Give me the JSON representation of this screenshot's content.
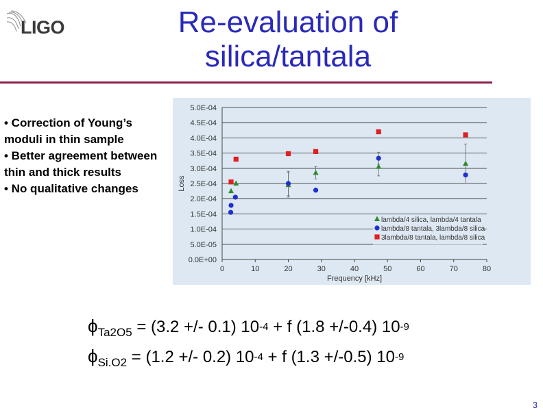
{
  "header": {
    "logo_text": "LIGO",
    "title_line1": "Re-evaluation of",
    "title_line2": "silica/tantala"
  },
  "bullets": [
    "• Correction of Young’s moduli in thin sample",
    "• Better agreement between thin and thick results",
    "• No qualitative changes"
  ],
  "equations": [
    {
      "symbol": "ϕ",
      "subscript": "Ta2O5",
      "text_a": " = (3.2 +/- 0.1) 10",
      "exp_a": "-4",
      "text_b": " + f (1.8 +/-0.4) 10",
      "exp_b": "-9"
    },
    {
      "symbol": "ϕ",
      "subscript": "Si.O2",
      "text_a": " = (1.2 +/- 0.2) 10",
      "exp_a": "-4",
      "text_b": " + f (1.3 +/-0.5) 10",
      "exp_b": "-9"
    }
  ],
  "page_number": "3",
  "colors": {
    "title": "#2a2ab8",
    "rule": "#8b1e4a",
    "chart_bg": "#dde8f2",
    "series_green": "#2e8b2e",
    "series_blue": "#1f2fd0",
    "series_red": "#e01f1f"
  },
  "chart_data": {
    "type": "scatter",
    "xlabel": "Frequency [kHz]",
    "ylabel": "Loss",
    "xlim": [
      0,
      80
    ],
    "ylim": [
      0,
      0.0005
    ],
    "x_ticks": [
      0,
      10,
      20,
      30,
      40,
      50,
      60,
      70,
      80
    ],
    "y_ticks": [
      0,
      5e-05,
      0.0001,
      0.00015,
      0.0002,
      0.00025,
      0.0003,
      0.00035,
      0.0004,
      0.00045,
      0.0005
    ],
    "y_tick_labels": [
      "0.0E+00",
      "5.0E-05",
      "1.0E-04",
      "1.5E-04",
      "2.0E-04",
      "2.5E-04",
      "3.0E-04",
      "3.5E-04",
      "4.0E-04",
      "4.5E-04",
      "5.0E-04"
    ],
    "grid": "horizontal",
    "legend_position": "bottom-right",
    "series": [
      {
        "name": "lambda/4 silica, lambda/4 tantala",
        "color": "#2e8b2e",
        "marker": "triangle",
        "points": [
          {
            "x": 2.7,
            "y": 0.000225
          },
          {
            "x": 4.2,
            "y": 0.00025
          },
          {
            "x": 20.0,
            "y": 0.000245,
            "err": 4e-05
          },
          {
            "x": 28.3,
            "y": 0.000285,
            "err": 2e-05
          },
          {
            "x": 47.3,
            "y": 0.000305,
            "err": 3e-05
          },
          {
            "x": 73.6,
            "y": 0.000315,
            "err": 6.5e-05
          }
        ]
      },
      {
        "name": "lambda/8 tantala, 3lambda/8 silica",
        "color": "#1f2fd0",
        "marker": "circle",
        "points": [
          {
            "x": 2.6,
            "y": 0.000155
          },
          {
            "x": 2.7,
            "y": 0.000178
          },
          {
            "x": 4.0,
            "y": 0.000205
          },
          {
            "x": 20.0,
            "y": 0.00025,
            "err": 4e-05
          },
          {
            "x": 28.3,
            "y": 0.000228
          },
          {
            "x": 47.3,
            "y": 0.000333,
            "err": 2e-05
          },
          {
            "x": 73.6,
            "y": 0.000278
          }
        ]
      },
      {
        "name": "3lambda/8 tantala, lambda/8 silica",
        "color": "#e01f1f",
        "marker": "square",
        "points": [
          {
            "x": 2.7,
            "y": 0.000255
          },
          {
            "x": 4.2,
            "y": 0.00033
          },
          {
            "x": 20.0,
            "y": 0.000348
          },
          {
            "x": 28.3,
            "y": 0.000355
          },
          {
            "x": 47.3,
            "y": 0.00042
          },
          {
            "x": 73.6,
            "y": 0.00041
          }
        ]
      }
    ]
  }
}
